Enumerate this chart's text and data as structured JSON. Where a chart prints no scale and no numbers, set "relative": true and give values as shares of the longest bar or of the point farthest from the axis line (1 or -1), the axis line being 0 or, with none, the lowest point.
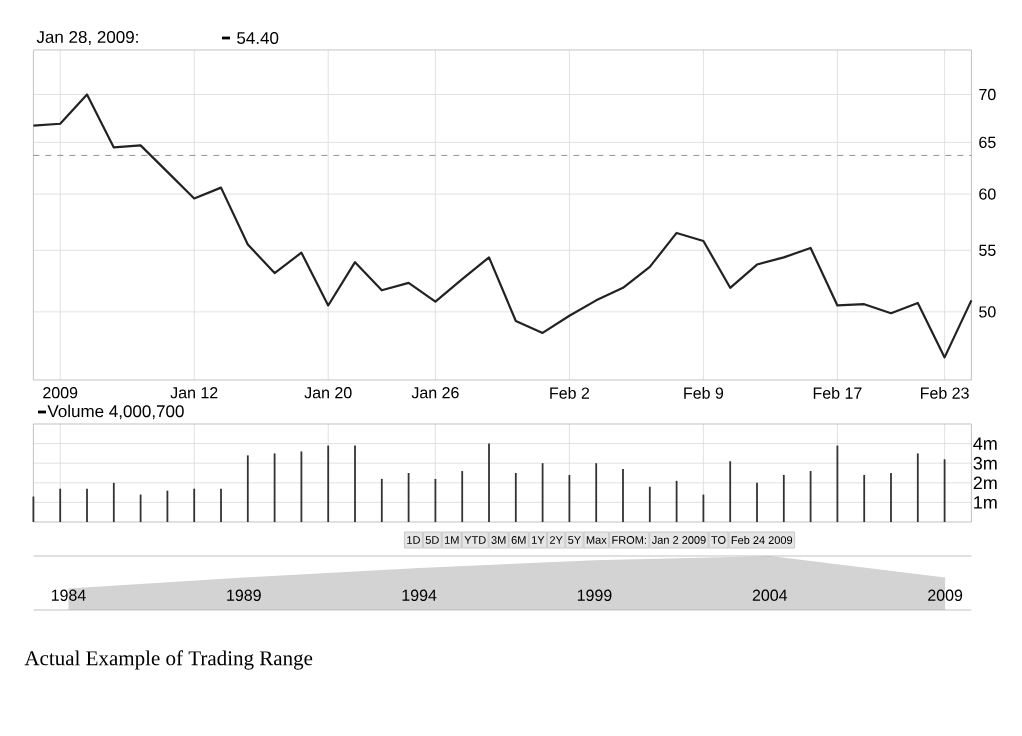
{
  "chart_data": [
    {
      "type": "line",
      "annotations": [
        "Jan 28, 2009:",
        "54.40"
      ],
      "categories": [
        null,
        "2009",
        null,
        null,
        null,
        null,
        "Jan 12",
        null,
        null,
        null,
        null,
        "Jan 20",
        null,
        null,
        null,
        "Jan 26",
        null,
        null,
        null,
        null,
        "Feb 2",
        null,
        null,
        null,
        null,
        "Feb 9",
        null,
        null,
        null,
        null,
        "Feb 17",
        null,
        null,
        null,
        "Feb 23",
        null
      ],
      "series": [
        {
          "color": "#222222",
          "values": [
            66.7,
            66.9,
            70.0,
            64.5,
            64.7,
            62.1,
            59.6,
            60.6,
            55.5,
            53.1,
            54.8,
            50.5,
            54.0,
            51.7,
            52.3,
            50.8,
            52.6,
            54.4,
            49.3,
            48.4,
            49.7,
            50.9,
            51.9,
            53.6,
            56.5,
            55.8,
            51.9,
            53.8,
            54.4,
            55.2,
            50.5,
            50.6,
            49.9,
            50.7,
            46.6,
            50.9
          ]
        }
      ],
      "log": true,
      "ylim": [
        45,
        75
      ],
      "yticks": [
        50,
        55,
        60,
        65,
        70
      ],
      "grid": true,
      "line_style": "solid",
      "ref_lines": [
        {
          "axis": "y",
          "value": 63.7,
          "line_style": "dashed",
          "color": "#777777"
        }
      ]
    },
    {
      "type": "bar",
      "annotations": [
        "Volume 4,000,700",
        "1D",
        "5D",
        "1M",
        "YTD",
        "3M",
        "6M",
        "1Y",
        "2Y",
        "5Y",
        "Max",
        "FROM:",
        "Jan 2 2009",
        "TO",
        "Feb 24 2009"
      ],
      "categories": [
        null,
        null,
        null,
        null,
        null,
        null,
        null,
        null,
        null,
        null,
        null,
        null,
        null,
        null,
        null,
        null,
        null,
        null,
        null,
        null,
        null,
        null,
        null,
        null,
        null,
        null,
        null,
        null,
        null,
        null,
        null,
        null,
        null,
        null,
        null,
        null
      ],
      "series": [
        {
          "color": "#333333",
          "values": [
            1.3,
            1.7,
            1.7,
            2.0,
            1.4,
            1.6,
            1.7,
            1.7,
            3.4,
            3.5,
            3.6,
            3.9,
            3.9,
            2.2,
            2.5,
            2.2,
            2.6,
            4.0,
            2.5,
            3.0,
            2.4,
            3.0,
            2.7,
            1.8,
            2.1,
            1.4,
            3.1,
            2.0,
            2.4,
            2.6,
            3.9,
            2.4,
            2.5,
            3.5,
            3.2,
            null
          ]
        }
      ],
      "ylim": [
        0,
        5
      ],
      "yticks": [
        {
          "value": 1,
          "label": "1m"
        },
        {
          "value": 2,
          "label": "2m"
        },
        {
          "value": 3,
          "label": "3m"
        },
        {
          "value": 4,
          "label": "4m"
        }
      ],
      "grid": true,
      "tick_labels": "y"
    },
    {
      "type": "area",
      "relative": true,
      "title": "Actual Example of Trading Range",
      "categories": [
        "1984",
        "1989",
        "1994",
        "1999",
        "2004",
        "2009"
      ],
      "series": [
        {
          "color": "#d3d3d3",
          "values": [
            0.4,
            0.6,
            0.78,
            0.92,
            1.0,
            0.6
          ]
        }
      ],
      "tick_labels": "x"
    }
  ]
}
